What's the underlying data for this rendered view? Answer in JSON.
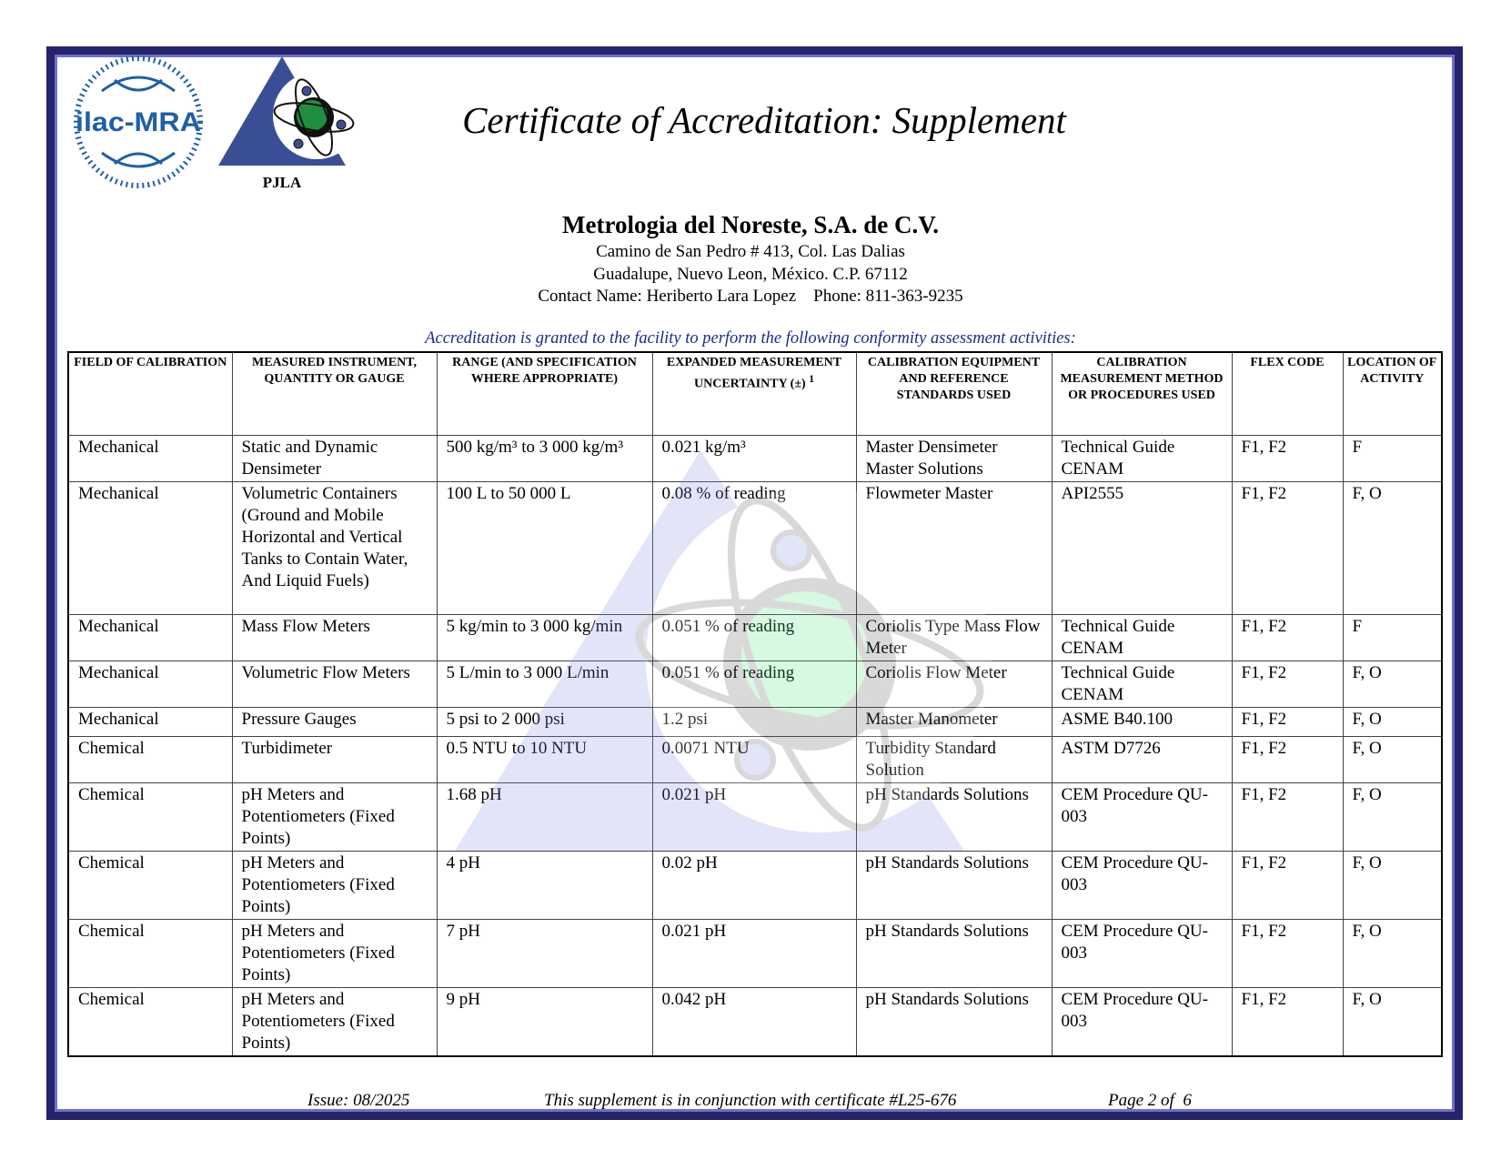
{
  "header": {
    "logos": [
      "ilac-MRA",
      "PJLA"
    ],
    "title": "Certificate of Accreditation: Supplement"
  },
  "company": {
    "name": "Metrologia del Noreste, S.A. de C.V.",
    "address1": "Camino de San Pedro # 413, Col. Las Dalias",
    "address2": "Guadalupe, Nuevo Leon, México. C.P. 67112",
    "contact": "Contact Name: Heriberto Lara Lopez    Phone: 811-363-9235"
  },
  "intro": "Accreditation is granted to the facility to perform the following conformity assessment activities:",
  "table": {
    "headers": [
      "FIELD OF CALIBRATION",
      "MEASURED INSTRUMENT, QUANTITY OR GAUGE",
      "RANGE (AND SPECIFICATION WHERE APPROPRIATE)",
      "EXPANDED MEASUREMENT UNCERTAINTY (±)",
      "CALIBRATION EQUIPMENT AND REFERENCE STANDARDS USED",
      "CALIBRATION MEASUREMENT METHOD OR PROCEDURES USED",
      "FLEX CODE",
      "LOCATION OF ACTIVITY"
    ],
    "uncertainty_footnote": "1",
    "rows": [
      [
        "Mechanical",
        "Static and Dynamic Densimeter",
        "500 kg/m³ to 3 000 kg/m³",
        "0.021 kg/m³",
        "Master Densimeter Master Solutions",
        "Technical Guide CENAM",
        "F1, F2",
        "F"
      ],
      [
        "Mechanical",
        "Volumetric Containers (Ground and Mobile Horizontal and Vertical Tanks to Contain Water, And Liquid Fuels)",
        "100 L to 50 000 L",
        "0.08 % of reading",
        "Flowmeter Master",
        "API2555",
        "F1, F2",
        "F, O"
      ],
      [
        "Mechanical",
        "Mass Flow Meters",
        "5 kg/min to 3 000 kg/min",
        "0.051 % of reading",
        "Coriolis Type Mass Flow Meter",
        "Technical Guide CENAM",
        "F1, F2",
        "F"
      ],
      [
        "Mechanical",
        "Volumetric Flow Meters",
        "5 L/min to 3 000 L/min",
        "0.051 % of reading",
        "Coriolis Flow Meter",
        "Technical Guide CENAM",
        "F1, F2",
        "F, O"
      ],
      [
        "Mechanical",
        "Pressure Gauges",
        "5 psi to 2 000 psi",
        "1.2 psi",
        "Master Manometer",
        "ASME B40.100",
        "F1, F2",
        "F, O"
      ],
      [
        "Chemical",
        "Turbidimeter",
        "0.5 NTU to 10 NTU",
        "0.0071 NTU",
        "Turbidity Standard Solution",
        "ASTM D7726",
        "F1, F2",
        "F, O"
      ],
      [
        "Chemical",
        "pH Meters and Potentiometers (Fixed Points)",
        "1.68 pH",
        "0.021 pH",
        "pH Standards Solutions",
        "CEM Procedure QU-003",
        "F1, F2",
        "F, O"
      ],
      [
        "Chemical",
        "pH Meters and Potentiometers (Fixed Points)",
        "4 pH",
        "0.02 pH",
        "pH Standards Solutions",
        "CEM Procedure QU-003",
        "F1, F2",
        "F, O"
      ],
      [
        "Chemical",
        "pH Meters and Potentiometers (Fixed Points)",
        "7 pH",
        "0.021 pH",
        "pH Standards Solutions",
        "CEM Procedure QU-003",
        "F1, F2",
        "F, O"
      ],
      [
        "Chemical",
        "pH Meters and Potentiometers (Fixed Points)",
        "9 pH",
        "0.042 pH",
        "pH Standards Solutions",
        "CEM Procedure QU-003",
        "F1, F2",
        "F, O"
      ]
    ]
  },
  "footer": {
    "issue": "Issue: 08/2025",
    "note": "This supplement is in conjunction with certificate #L25-676",
    "page": "Page 2 of  6"
  },
  "colors": {
    "border_dark": "#24246a",
    "border_light": "#6f6fd0",
    "intro_text": "#1a2a8c",
    "logo_blue": "#3a4e96",
    "atom_green": "#1f8f3f"
  }
}
